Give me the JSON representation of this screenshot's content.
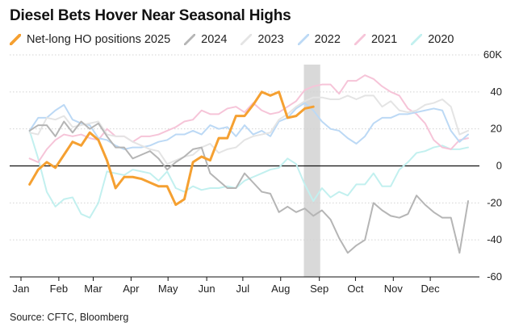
{
  "chart_data": {
    "type": "line",
    "title": "Diesel Bets Hover Near Seasonal Highs",
    "source": "Source: CFTC, Bloomberg",
    "ylabel": "",
    "xlabel": "",
    "ylim": [
      -60,
      60
    ],
    "xlim": [
      1,
      53
    ],
    "y_ticks": [
      {
        "value": 60,
        "label": "60K"
      },
      {
        "value": 40,
        "label": "40"
      },
      {
        "value": 20,
        "label": "20"
      },
      {
        "value": 0,
        "label": "0"
      },
      {
        "value": -20,
        "label": "-20"
      },
      {
        "value": -40,
        "label": "-40"
      },
      {
        "value": -60,
        "label": "-60"
      }
    ],
    "x_ticks": [
      {
        "value": 1,
        "label": "Jan"
      },
      {
        "value": 5.4,
        "label": "Feb"
      },
      {
        "value": 9.4,
        "label": "Mar"
      },
      {
        "value": 13.8,
        "label": "Apr"
      },
      {
        "value": 18.1,
        "label": "May"
      },
      {
        "value": 22.6,
        "label": "Jun"
      },
      {
        "value": 26.8,
        "label": "Jul"
      },
      {
        "value": 31.2,
        "label": "Aug"
      },
      {
        "value": 35.7,
        "label": "Sep"
      },
      {
        "value": 39.9,
        "label": "Oct"
      },
      {
        "value": 44.3,
        "label": "Nov"
      },
      {
        "value": 48.6,
        "label": "Dec"
      }
    ],
    "highlight_band": {
      "start": 33.9,
      "end": 35.8,
      "color": "#d9d9d9"
    },
    "series": [
      {
        "name": "2020",
        "color": "#c2f0ef",
        "width": 2,
        "x": [
          2,
          3,
          4,
          5,
          6,
          7,
          8,
          9,
          10,
          11,
          12,
          13,
          14,
          15,
          16,
          17,
          18,
          19,
          20,
          21,
          22,
          23,
          24,
          25,
          26,
          27,
          28,
          29,
          30,
          31,
          32,
          33,
          34,
          35,
          36,
          37,
          38,
          39,
          40,
          41,
          42,
          43,
          44,
          45,
          46,
          47,
          48,
          49,
          50,
          51,
          52,
          53
        ],
        "values": [
          19,
          4,
          -14,
          -22,
          -18,
          -17,
          -26,
          -28,
          -20,
          -3,
          -4,
          -5,
          -2,
          -3,
          -4,
          -8,
          -3,
          -12,
          -14,
          -11,
          -13,
          -12,
          -12,
          -11,
          -12,
          -8,
          -6,
          -4,
          -2,
          -1,
          4,
          1,
          -10,
          -19,
          -12,
          -17,
          -14,
          -16,
          -10,
          -10,
          -4,
          -11,
          -11,
          -2,
          2,
          7,
          8,
          10,
          11,
          9,
          9,
          10
        ]
      },
      {
        "name": "2021",
        "color": "#f6c4d8",
        "width": 2,
        "x": [
          2,
          3,
          4,
          5,
          6,
          7,
          8,
          9,
          10,
          11,
          12,
          13,
          14,
          15,
          16,
          17,
          18,
          19,
          20,
          21,
          22,
          23,
          24,
          25,
          26,
          27,
          28,
          29,
          30,
          31,
          32,
          33,
          34,
          35,
          36,
          37,
          38,
          39,
          40,
          41,
          42,
          43,
          44,
          45,
          46,
          47,
          48,
          49,
          50,
          51,
          52,
          53
        ],
        "values": [
          4,
          2,
          9,
          14,
          17,
          16,
          17,
          15,
          14,
          20,
          16,
          16,
          13,
          16,
          16,
          17,
          19,
          21,
          24,
          25,
          30,
          28,
          28,
          31,
          32,
          29,
          34,
          30,
          28,
          29,
          32,
          35,
          41,
          43,
          44,
          44,
          39,
          46,
          46,
          49,
          47,
          43,
          40,
          38,
          31,
          28,
          23,
          14,
          10,
          9,
          14,
          15
        ]
      },
      {
        "name": "2022",
        "color": "#bcd9f5",
        "width": 2,
        "x": [
          2,
          3,
          4,
          5,
          6,
          7,
          8,
          9,
          10,
          11,
          12,
          13,
          14,
          15,
          16,
          17,
          18,
          19,
          20,
          21,
          22,
          23,
          24,
          25,
          26,
          27,
          28,
          29,
          30,
          31,
          32,
          33,
          34,
          35,
          36,
          37,
          38,
          39,
          40,
          41,
          42,
          43,
          44,
          45,
          46,
          47,
          48,
          49,
          50,
          51,
          52,
          53
        ],
        "values": [
          19,
          26,
          26,
          30,
          33,
          25,
          23,
          22,
          15,
          14,
          11,
          9,
          10,
          10,
          11,
          13,
          14,
          17,
          17,
          19,
          17,
          22,
          20,
          21,
          16,
          22,
          17,
          19,
          16,
          24,
          26,
          31,
          34,
          30,
          24,
          20,
          19,
          15,
          12,
          16,
          23,
          26,
          26,
          28,
          28,
          29,
          30,
          31,
          30,
          19,
          13,
          17
        ]
      },
      {
        "name": "2023",
        "color": "#e4e4e4",
        "width": 2,
        "x": [
          2,
          3,
          4,
          5,
          6,
          7,
          8,
          9,
          10,
          11,
          12,
          13,
          14,
          15,
          16,
          17,
          18,
          19,
          20,
          21,
          22,
          23,
          24,
          25,
          26,
          27,
          28,
          29,
          30,
          31,
          32,
          33,
          34,
          35,
          36,
          37,
          38,
          39,
          40,
          41,
          42,
          43,
          44,
          45,
          46,
          47,
          48,
          49,
          50,
          51,
          52,
          53
        ],
        "values": [
          18,
          17,
          26,
          25,
          27,
          21,
          22,
          23,
          24,
          17,
          16,
          16,
          13,
          11,
          9,
          8,
          1,
          3,
          5,
          6,
          10,
          12,
          7,
          9,
          10,
          14,
          16,
          17,
          18,
          25,
          28,
          32,
          35,
          37,
          37,
          36,
          36,
          38,
          36,
          38,
          38,
          32,
          35,
          30,
          29,
          30,
          33,
          34,
          36,
          32,
          17,
          19
        ]
      },
      {
        "name": "2024",
        "color": "#b5b5b5",
        "width": 2,
        "x": [
          2,
          3,
          4,
          5,
          6,
          7,
          8,
          9,
          10,
          11,
          12,
          13,
          14,
          15,
          16,
          17,
          18,
          19,
          20,
          21,
          22,
          23,
          24,
          25,
          26,
          27,
          28,
          29,
          30,
          31,
          32,
          33,
          34,
          35,
          36,
          37,
          38,
          39,
          40,
          41,
          42,
          43,
          44,
          45,
          46,
          47,
          48,
          49,
          50,
          51,
          52,
          53
        ],
        "values": [
          19,
          22,
          22,
          16,
          24,
          18,
          24,
          20,
          23,
          16,
          10,
          10,
          4,
          6,
          8,
          4,
          -2,
          2,
          5,
          9,
          10,
          -4,
          -8,
          -12,
          -12,
          -4,
          -9,
          -14,
          -15,
          -25,
          -22,
          -25,
          -23,
          -27,
          -24,
          -29,
          -39,
          -47,
          -43,
          -40,
          -20,
          -24,
          -27,
          -28,
          -26,
          -16,
          -21,
          -25,
          -28,
          -28,
          -47,
          -19
        ]
      },
      {
        "name": "Net-long HO positions 2025",
        "color": "#f5a031",
        "width": 3,
        "x": [
          2,
          3,
          4,
          5,
          6,
          7,
          8,
          9,
          10,
          11,
          12,
          13,
          14,
          15,
          16,
          17,
          18,
          19,
          20,
          21,
          22,
          23,
          24,
          25,
          26,
          27,
          28,
          29,
          30,
          31,
          32,
          33,
          34,
          35
        ],
        "values": [
          -10,
          -2,
          2,
          -1,
          6,
          13,
          11,
          18,
          14,
          3,
          -12,
          -6,
          -6,
          -7,
          -9,
          -11,
          -11,
          -21,
          -18,
          2,
          5,
          3,
          15,
          15,
          27,
          27,
          33,
          40,
          38,
          40,
          26,
          27,
          31,
          32
        ]
      }
    ]
  }
}
